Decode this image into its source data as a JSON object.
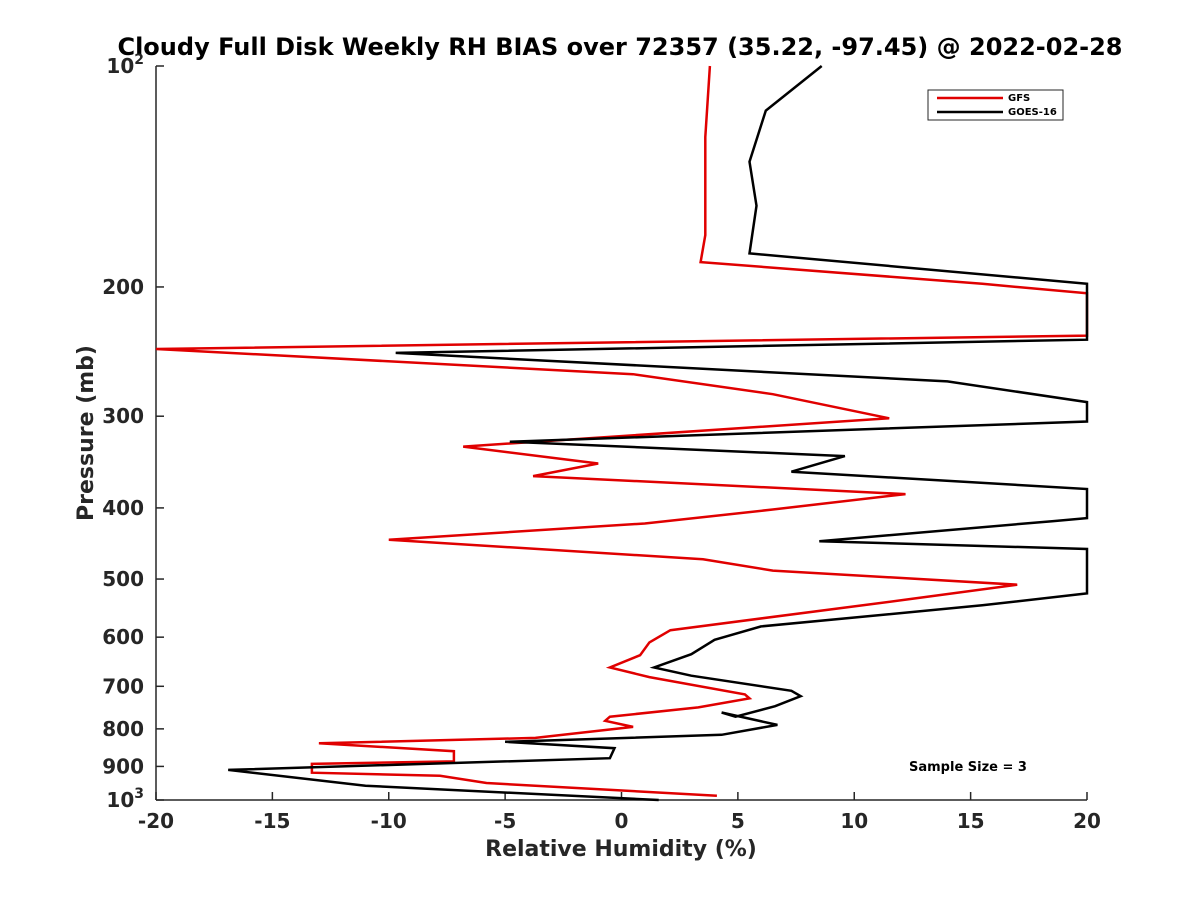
{
  "chart_data": {
    "type": "line",
    "title": "Cloudy Full Disk Weekly RH BIAS over 72357 (35.22, -97.45) @ 2022-02-28",
    "xlabel": "Relative Humidity (%)",
    "ylabel": "Pressure (mb)",
    "xlim": [
      -20,
      20
    ],
    "ylim": [
      100,
      1000
    ],
    "y_scale": "log",
    "y_reversed": true,
    "grid": false,
    "legend_position": "top-right",
    "x_ticks": [
      "-20",
      "-15",
      "-10",
      "-5",
      "0",
      "5",
      "10",
      "15",
      "20"
    ],
    "y_ticks": [
      {
        "value": 100,
        "base": "10",
        "exp": "2"
      },
      {
        "value": 200,
        "label": "200"
      },
      {
        "value": 300,
        "label": "300"
      },
      {
        "value": 400,
        "label": "400"
      },
      {
        "value": 500,
        "label": "500"
      },
      {
        "value": 600,
        "label": "600"
      },
      {
        "value": 700,
        "label": "700"
      },
      {
        "value": 800,
        "label": "800"
      },
      {
        "value": 900,
        "label": "900"
      },
      {
        "value": 1000,
        "base": "10",
        "exp": "3"
      }
    ],
    "annotation": "Sample Size = 3",
    "series": [
      {
        "name": "GFS",
        "color": "#e00000",
        "points": [
          [
            3.8,
            100
          ],
          [
            3.6,
            125
          ],
          [
            3.6,
            150
          ],
          [
            3.6,
            170
          ],
          [
            3.4,
            185
          ],
          [
            15.5,
            198
          ],
          [
            20,
            204
          ],
          [
            20,
            233
          ],
          [
            -20,
            243
          ],
          [
            0.5,
            263
          ],
          [
            6.5,
            280
          ],
          [
            11.5,
            302
          ],
          [
            -6.8,
            330
          ],
          [
            -1,
            348
          ],
          [
            -3.8,
            362
          ],
          [
            12.2,
            383
          ],
          [
            6.5,
            402
          ],
          [
            1,
            420
          ],
          [
            -10,
            442
          ],
          [
            3.5,
            470
          ],
          [
            6.5,
            487
          ],
          [
            17,
            509
          ],
          [
            12.5,
            532
          ],
          [
            2.1,
            587
          ],
          [
            1.2,
            610
          ],
          [
            0.8,
            635
          ],
          [
            -0.5,
            660
          ],
          [
            1.2,
            680
          ],
          [
            5.3,
            718
          ],
          [
            5.5,
            727
          ],
          [
            3.3,
            748
          ],
          [
            -0.5,
            770
          ],
          [
            -0.7,
            780
          ],
          [
            0.5,
            795
          ],
          [
            -3.7,
            823
          ],
          [
            -13,
            837
          ],
          [
            -7.2,
            858
          ],
          [
            -7.2,
            886
          ],
          [
            -13.3,
            893
          ],
          [
            -13.3,
            918
          ],
          [
            -7.8,
            927
          ],
          [
            -5.8,
            948
          ],
          [
            4.1,
            987
          ]
        ]
      },
      {
        "name": "GOES-16",
        "color": "#000000",
        "points": [
          [
            8.6,
            100
          ],
          [
            6.2,
            115
          ],
          [
            5.5,
            135
          ],
          [
            5.8,
            155
          ],
          [
            5.5,
            180
          ],
          [
            20,
            198
          ],
          [
            20,
            236
          ],
          [
            -9.7,
            246
          ],
          [
            14,
            269
          ],
          [
            20,
            287
          ],
          [
            20,
            305
          ],
          [
            -4.8,
            325
          ],
          [
            9.6,
            340
          ],
          [
            7.3,
            357
          ],
          [
            20,
            377
          ],
          [
            20,
            413
          ],
          [
            18.5,
            417
          ],
          [
            8.5,
            444
          ],
          [
            20,
            455
          ],
          [
            20,
            523
          ],
          [
            15.5,
            543
          ],
          [
            6,
            580
          ],
          [
            4,
            605
          ],
          [
            3,
            633
          ],
          [
            1.4,
            660
          ],
          [
            3,
            677
          ],
          [
            7.3,
            710
          ],
          [
            7.7,
            722
          ],
          [
            6.6,
            745
          ],
          [
            4.9,
            770
          ],
          [
            4.3,
            760
          ],
          [
            6.7,
            790
          ],
          [
            4.3,
            815
          ],
          [
            -5,
            833
          ],
          [
            -0.3,
            850
          ],
          [
            -0.5,
            877
          ],
          [
            -16.9,
            910
          ],
          [
            -11,
            956
          ],
          [
            1.6,
            1000
          ]
        ]
      }
    ]
  }
}
